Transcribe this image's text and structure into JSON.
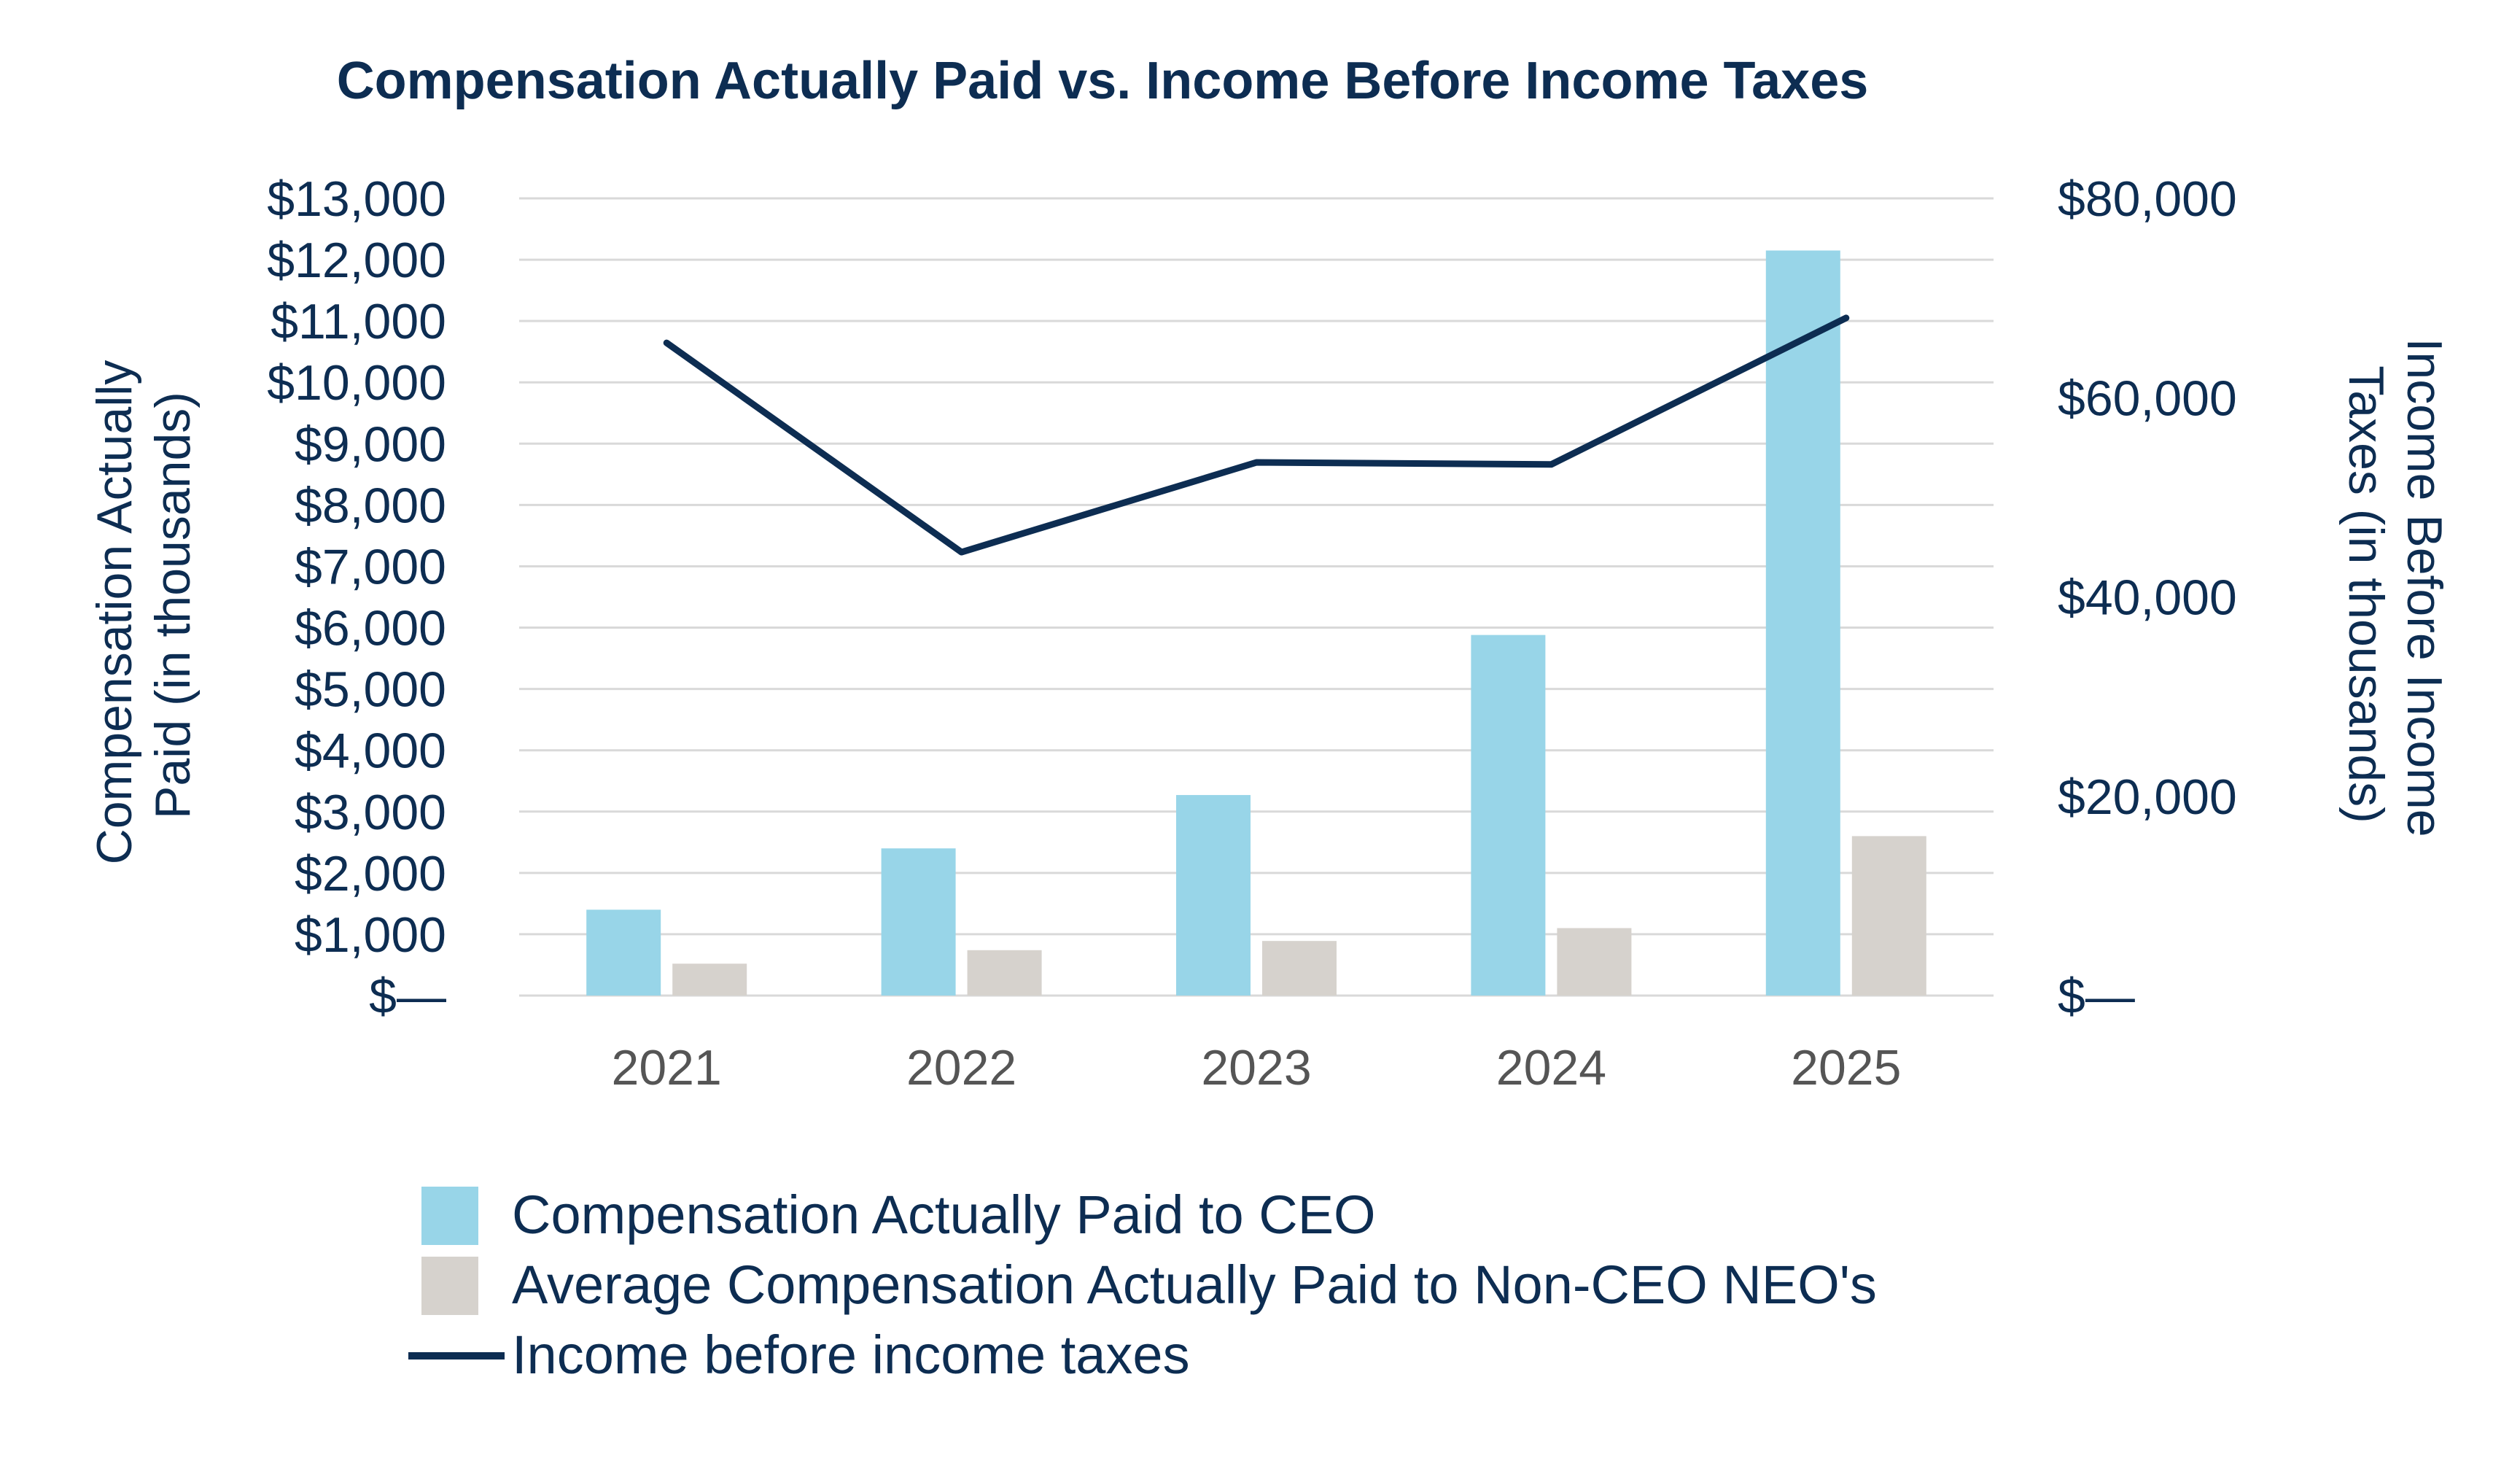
{
  "chart_data": {
    "type": "bar",
    "title": "Compensation Actually Paid vs. Income Before Income Taxes",
    "categories": [
      "2021",
      "2022",
      "2023",
      "2024",
      "2025"
    ],
    "series": [
      {
        "name": "Compensation Actually Paid to CEO",
        "type": "bar",
        "axis": "left",
        "color": "#98D5E8",
        "values": [
          1400,
          2400,
          3270,
          5880,
          12150
        ]
      },
      {
        "name": "Average Compensation Actually Paid to Non-CEO NEO's",
        "type": "bar",
        "axis": "left",
        "color": "#D6D2CD",
        "values": [
          520,
          740,
          890,
          1100,
          2600
        ]
      },
      {
        "name": "Income before income taxes",
        "type": "line",
        "axis": "right",
        "color": "#0D2D52",
        "values": [
          65500,
          44500,
          53500,
          53300,
          68000
        ]
      }
    ],
    "y_left": {
      "label_lines": [
        "Compensation Actually",
        "Paid (in thousands)"
      ],
      "range": [
        0,
        13000
      ],
      "ticks": [
        0,
        1000,
        2000,
        3000,
        4000,
        5000,
        6000,
        7000,
        8000,
        9000,
        10000,
        11000,
        12000,
        13000
      ],
      "tick_labels": [
        "$—",
        "$1,000",
        "$2,000",
        "$3,000",
        "$4,000",
        "$5,000",
        "$6,000",
        "$7,000",
        "$8,000",
        "$9,000",
        "$10,000",
        "$11,000",
        "$12,000",
        "$13,000"
      ]
    },
    "y_right": {
      "label_lines": [
        "Income Before Income",
        "Taxes (in thousands)"
      ],
      "range": [
        0,
        80000
      ],
      "ticks": [
        0,
        20000,
        40000,
        60000,
        80000
      ],
      "tick_labels": [
        "$—",
        "$20,000",
        "$40,000",
        "$60,000",
        "$80,000"
      ]
    },
    "grid": true,
    "legend_position": "bottom",
    "colors": {
      "title": "#0D2D52",
      "axis_text": "#0D2D52",
      "category_text": "#555555",
      "grid": "#D9D9D9"
    }
  }
}
